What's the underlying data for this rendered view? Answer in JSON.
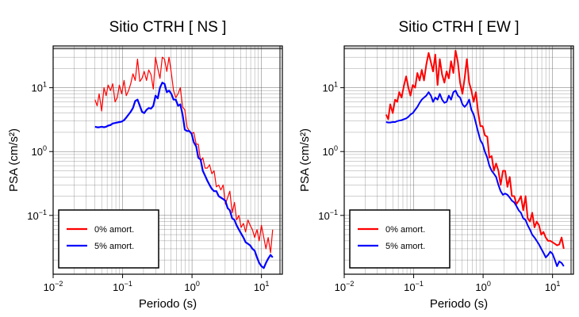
{
  "chart_data": [
    {
      "type": "line",
      "title": "Sitio CTRH [ NS ]",
      "xlabel": "Periodo (s)",
      "ylabel": "PSA (cm/s²)",
      "x_scale": "log",
      "y_scale": "log",
      "xlim": [
        0.01,
        20
      ],
      "ylim": [
        0.012,
        45
      ],
      "grid": true,
      "legend_position": "bottom-left",
      "x_ticks": [
        {
          "value": 0.01,
          "base": "10",
          "exp": "−2"
        },
        {
          "value": 0.1,
          "base": "10",
          "exp": "−1"
        },
        {
          "value": 1,
          "base": "10",
          "exp": "0"
        },
        {
          "value": 10,
          "base": "10",
          "exp": "1"
        }
      ],
      "y_ticks": [
        {
          "value": 0.1,
          "base": "10",
          "exp": "−1"
        },
        {
          "value": 1,
          "base": "10",
          "exp": "0"
        },
        {
          "value": 10,
          "base": "10",
          "exp": "1"
        }
      ],
      "series": [
        {
          "name": "0% amort.",
          "color": "#ff0000",
          "width": 1.2,
          "x": [
            0.04,
            0.043,
            0.046,
            0.05,
            0.054,
            0.058,
            0.062,
            0.067,
            0.072,
            0.078,
            0.084,
            0.09,
            0.097,
            0.105,
            0.113,
            0.122,
            0.131,
            0.141,
            0.152,
            0.164,
            0.177,
            0.19,
            0.205,
            0.221,
            0.238,
            0.257,
            0.277,
            0.298,
            0.321,
            0.346,
            0.373,
            0.402,
            0.433,
            0.467,
            0.503,
            0.542,
            0.584,
            0.63,
            0.678,
            0.731,
            0.788,
            0.849,
            0.915,
            0.986,
            1.06,
            1.15,
            1.23,
            1.33,
            1.43,
            1.54,
            1.66,
            1.79,
            1.93,
            2.08,
            2.24,
            2.42,
            2.6,
            2.81,
            3.02,
            3.26,
            3.51,
            3.78,
            4.08,
            4.39,
            4.73,
            5.1,
            5.5,
            5.92,
            6.38,
            6.88,
            7.41,
            7.99,
            8.61,
            9.27,
            10.0,
            10.8,
            11.6,
            12.5,
            13.5,
            14.5
          ],
          "y": [
            6.5,
            5.2,
            8.0,
            4.3,
            10.0,
            7.5,
            11.0,
            9.0,
            11.5,
            6.0,
            7.0,
            11.0,
            8.0,
            13.0,
            7.5,
            9.0,
            11.5,
            16.5,
            13.0,
            28.0,
            12.5,
            14.0,
            18.0,
            13.0,
            19.0,
            16.0,
            9.5,
            30.0,
            20.0,
            14.0,
            30.0,
            28.0,
            18.0,
            30.0,
            17.0,
            9.0,
            7.0,
            8.0,
            10.0,
            5.0,
            4.5,
            2.4,
            2.1,
            1.9,
            2.0,
            1.3,
            1.3,
            0.7,
            0.8,
            0.55,
            0.55,
            0.62,
            0.45,
            0.5,
            0.28,
            0.3,
            0.25,
            0.3,
            0.15,
            0.19,
            0.24,
            0.11,
            0.16,
            0.085,
            0.1,
            0.065,
            0.075,
            0.055,
            0.085,
            0.07,
            0.06,
            0.045,
            0.06,
            0.04,
            0.07,
            0.045,
            0.03,
            0.045,
            0.026,
            0.06
          ]
        },
        {
          "name": "5% amort.",
          "color": "#0000ff",
          "width": 2.2,
          "x": [
            0.04,
            0.043,
            0.046,
            0.05,
            0.054,
            0.058,
            0.062,
            0.067,
            0.072,
            0.078,
            0.084,
            0.09,
            0.097,
            0.105,
            0.113,
            0.122,
            0.131,
            0.141,
            0.152,
            0.164,
            0.177,
            0.19,
            0.205,
            0.221,
            0.238,
            0.257,
            0.277,
            0.298,
            0.321,
            0.346,
            0.373,
            0.402,
            0.433,
            0.467,
            0.503,
            0.542,
            0.584,
            0.63,
            0.678,
            0.731,
            0.788,
            0.849,
            0.915,
            0.986,
            1.06,
            1.15,
            1.23,
            1.33,
            1.43,
            1.54,
            1.66,
            1.79,
            1.93,
            2.08,
            2.24,
            2.42,
            2.6,
            2.81,
            3.02,
            3.26,
            3.51,
            3.78,
            4.08,
            4.39,
            4.73,
            5.1,
            5.5,
            5.92,
            6.38,
            6.88,
            7.41,
            7.99,
            8.61,
            9.27,
            10.0,
            10.8,
            11.6,
            12.5,
            13.5,
            14.5
          ],
          "y": [
            2.45,
            2.4,
            2.4,
            2.45,
            2.4,
            2.45,
            2.55,
            2.6,
            2.75,
            2.8,
            2.85,
            2.9,
            2.95,
            3.1,
            3.4,
            3.8,
            4.2,
            4.8,
            6.2,
            6.5,
            5.2,
            4.2,
            4.0,
            4.5,
            4.8,
            4.7,
            5.2,
            7.5,
            6.8,
            10.0,
            12.0,
            11.5,
            8.5,
            9.0,
            8.0,
            6.5,
            6.5,
            5.2,
            5.5,
            3.8,
            2.2,
            2.1,
            2.1,
            1.9,
            1.4,
            1.2,
            0.8,
            0.75,
            0.5,
            0.42,
            0.35,
            0.3,
            0.26,
            0.24,
            0.24,
            0.2,
            0.19,
            0.18,
            0.17,
            0.13,
            0.12,
            0.09,
            0.085,
            0.07,
            0.06,
            0.052,
            0.045,
            0.038,
            0.036,
            0.034,
            0.03,
            0.028,
            0.022,
            0.018,
            0.016,
            0.015,
            0.018,
            0.021,
            0.024,
            0.022
          ]
        }
      ]
    },
    {
      "type": "line",
      "title": "Sitio CTRH [ EW ]",
      "xlabel": "Periodo (s)",
      "ylabel": "PSA (cm/s²)",
      "x_scale": "log",
      "y_scale": "log",
      "xlim": [
        0.01,
        20
      ],
      "ylim": [
        0.012,
        45
      ],
      "grid": true,
      "legend_position": "bottom-left",
      "x_ticks": [
        {
          "value": 0.01,
          "base": "10",
          "exp": "−2"
        },
        {
          "value": 0.1,
          "base": "10",
          "exp": "−1"
        },
        {
          "value": 1,
          "base": "10",
          "exp": "0"
        },
        {
          "value": 10,
          "base": "10",
          "exp": "1"
        }
      ],
      "y_ticks": [
        {
          "value": 0.1,
          "base": "10",
          "exp": "−1"
        },
        {
          "value": 1,
          "base": "10",
          "exp": "0"
        },
        {
          "value": 10,
          "base": "10",
          "exp": "1"
        }
      ],
      "series": [
        {
          "name": "0% amort.",
          "color": "#ff0000",
          "width": 2.0,
          "x": [
            0.04,
            0.043,
            0.046,
            0.05,
            0.054,
            0.058,
            0.062,
            0.067,
            0.072,
            0.078,
            0.084,
            0.09,
            0.097,
            0.105,
            0.113,
            0.122,
            0.131,
            0.141,
            0.152,
            0.164,
            0.177,
            0.19,
            0.205,
            0.221,
            0.238,
            0.257,
            0.277,
            0.298,
            0.321,
            0.346,
            0.373,
            0.402,
            0.433,
            0.467,
            0.503,
            0.542,
            0.584,
            0.63,
            0.678,
            0.731,
            0.788,
            0.849,
            0.915,
            0.986,
            1.06,
            1.15,
            1.23,
            1.33,
            1.43,
            1.54,
            1.66,
            1.79,
            1.93,
            2.08,
            2.24,
            2.42,
            2.6,
            2.81,
            3.02,
            3.26,
            3.51,
            3.78,
            4.08,
            4.39,
            4.73,
            5.1,
            5.5,
            5.92,
            6.38,
            6.88,
            7.41,
            7.99,
            8.61,
            9.27,
            10.0,
            10.8,
            11.6,
            12.5,
            13.5,
            14.5
          ],
          "y": [
            3.8,
            3.2,
            5.5,
            4.0,
            6.5,
            6.0,
            8.5,
            7.0,
            10.5,
            15.0,
            10.0,
            7.5,
            11.0,
            10.0,
            17.0,
            13.0,
            19.0,
            13.0,
            23.0,
            35.0,
            25.0,
            18.0,
            33.0,
            11.0,
            28.0,
            16.0,
            12.0,
            18.0,
            14.0,
            26.0,
            17.0,
            38.0,
            25.0,
            12.0,
            8.0,
            14.0,
            28.0,
            12.0,
            9.0,
            6.0,
            8.5,
            4.0,
            2.5,
            2.5,
            1.8,
            1.7,
            0.8,
            0.85,
            0.5,
            0.65,
            0.5,
            0.3,
            0.5,
            0.5,
            0.28,
            0.4,
            0.2,
            0.2,
            0.15,
            0.17,
            0.2,
            0.12,
            0.2,
            0.09,
            0.08,
            0.11,
            0.065,
            0.08,
            0.07,
            0.05,
            0.055,
            0.045,
            0.04,
            0.04,
            0.038,
            0.036,
            0.034,
            0.035,
            0.045,
            0.03
          ]
        },
        {
          "name": "5% amort.",
          "color": "#0000ff",
          "width": 2.0,
          "x": [
            0.04,
            0.043,
            0.046,
            0.05,
            0.054,
            0.058,
            0.062,
            0.067,
            0.072,
            0.078,
            0.084,
            0.09,
            0.097,
            0.105,
            0.113,
            0.122,
            0.131,
            0.141,
            0.152,
            0.164,
            0.177,
            0.19,
            0.205,
            0.221,
            0.238,
            0.257,
            0.277,
            0.298,
            0.321,
            0.346,
            0.373,
            0.402,
            0.433,
            0.467,
            0.503,
            0.542,
            0.584,
            0.63,
            0.678,
            0.731,
            0.788,
            0.849,
            0.915,
            0.986,
            1.06,
            1.15,
            1.23,
            1.33,
            1.43,
            1.54,
            1.66,
            1.79,
            1.93,
            2.08,
            2.24,
            2.42,
            2.6,
            2.81,
            3.02,
            3.26,
            3.51,
            3.78,
            4.08,
            4.39,
            4.73,
            5.1,
            5.5,
            5.92,
            6.38,
            6.88,
            7.41,
            7.99,
            8.61,
            9.27,
            10.0,
            10.8,
            11.6,
            12.5,
            13.5,
            14.5
          ],
          "y": [
            2.9,
            2.85,
            2.85,
            2.9,
            2.9,
            3.0,
            3.05,
            3.1,
            3.2,
            3.3,
            3.5,
            3.8,
            4.0,
            4.5,
            5.0,
            5.8,
            6.5,
            7.0,
            7.5,
            8.5,
            7.5,
            6.0,
            7.0,
            6.5,
            8.0,
            6.5,
            5.8,
            6.0,
            7.5,
            6.5,
            8.5,
            9.0,
            7.5,
            7.0,
            5.5,
            5.0,
            5.5,
            6.5,
            4.5,
            3.8,
            2.8,
            2.0,
            1.5,
            1.3,
            1.0,
            0.8,
            0.6,
            0.5,
            0.45,
            0.4,
            0.3,
            0.24,
            0.21,
            0.22,
            0.21,
            0.19,
            0.17,
            0.16,
            0.14,
            0.12,
            0.11,
            0.09,
            0.085,
            0.07,
            0.06,
            0.05,
            0.045,
            0.04,
            0.035,
            0.03,
            0.026,
            0.022,
            0.024,
            0.027,
            0.025,
            0.02,
            0.016,
            0.019,
            0.018,
            0.016
          ]
        }
      ]
    }
  ]
}
